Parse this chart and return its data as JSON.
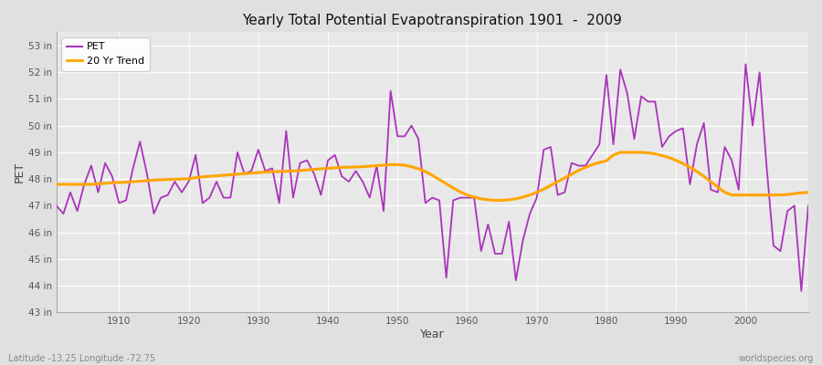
{
  "title": "Yearly Total Potential Evapotranspiration 1901  -  2009",
  "xlabel": "Year",
  "ylabel": "PET",
  "caption_left": "Latitude -13.25 Longitude -72.75",
  "caption_right": "worldspecies.org",
  "pet_color": "#AA33BB",
  "trend_color": "#FFA500",
  "bg_color": "#E0E0E0",
  "plot_bg_color": "#E8E8E8",
  "ylim_min": 43.0,
  "ylim_max": 53.5,
  "ytick_values": [
    43,
    44,
    45,
    46,
    47,
    48,
    49,
    50,
    51,
    52,
    53
  ],
  "ytick_labels": [
    "43 in",
    "44 in",
    "45 in",
    "46 in",
    "47 in",
    "48 in",
    "49 in",
    "50 in",
    "51 in",
    "52 in",
    "53 in"
  ],
  "xtick_values": [
    1910,
    1920,
    1930,
    1940,
    1950,
    1960,
    1970,
    1980,
    1990,
    2000
  ],
  "years": [
    1901,
    1902,
    1903,
    1904,
    1905,
    1906,
    1907,
    1908,
    1909,
    1910,
    1911,
    1912,
    1913,
    1914,
    1915,
    1916,
    1917,
    1918,
    1919,
    1920,
    1921,
    1922,
    1923,
    1924,
    1925,
    1926,
    1927,
    1928,
    1929,
    1930,
    1931,
    1932,
    1933,
    1934,
    1935,
    1936,
    1937,
    1938,
    1939,
    1940,
    1941,
    1942,
    1943,
    1944,
    1945,
    1946,
    1947,
    1948,
    1949,
    1950,
    1951,
    1952,
    1953,
    1954,
    1955,
    1956,
    1957,
    1958,
    1959,
    1960,
    1961,
    1962,
    1963,
    1964,
    1965,
    1966,
    1967,
    1968,
    1969,
    1970,
    1971,
    1972,
    1973,
    1974,
    1975,
    1976,
    1977,
    1978,
    1979,
    1980,
    1981,
    1982,
    1983,
    1984,
    1985,
    1986,
    1987,
    1988,
    1989,
    1990,
    1991,
    1992,
    1993,
    1994,
    1995,
    1996,
    1997,
    1998,
    1999,
    2000,
    2001,
    2002,
    2003,
    2004,
    2005,
    2006,
    2007,
    2008,
    2009
  ],
  "pet_values": [
    47.0,
    46.7,
    47.5,
    46.8,
    47.8,
    48.5,
    47.5,
    48.6,
    48.1,
    47.1,
    47.2,
    48.4,
    49.4,
    48.2,
    46.7,
    47.3,
    47.4,
    47.9,
    47.5,
    47.9,
    48.9,
    47.1,
    47.3,
    47.9,
    47.3,
    47.3,
    49.0,
    48.2,
    48.3,
    49.1,
    48.3,
    48.4,
    47.1,
    49.8,
    47.3,
    48.6,
    48.7,
    48.2,
    47.4,
    48.7,
    48.9,
    48.1,
    47.9,
    48.3,
    47.9,
    47.3,
    48.5,
    46.8,
    51.3,
    49.6,
    49.6,
    50.0,
    49.5,
    47.1,
    47.3,
    47.2,
    44.3,
    47.2,
    47.3,
    47.3,
    47.3,
    45.3,
    46.3,
    45.2,
    45.2,
    46.4,
    44.2,
    45.7,
    46.7,
    47.3,
    49.1,
    49.2,
    47.4,
    47.5,
    48.6,
    48.5,
    48.5,
    48.9,
    49.3,
    51.9,
    49.3,
    52.1,
    51.2,
    49.5,
    51.1,
    50.9,
    50.9,
    49.2,
    49.6,
    49.8,
    49.9,
    47.8,
    49.3,
    50.1,
    47.6,
    47.5,
    49.2,
    48.7,
    47.6,
    52.3,
    50.0,
    52.0,
    48.5,
    45.5,
    45.3,
    46.8,
    47.0,
    43.8,
    47.0
  ],
  "trend_years": [
    1901,
    1902,
    1903,
    1904,
    1905,
    1906,
    1907,
    1908,
    1909,
    1910,
    1911,
    1912,
    1913,
    1914,
    1915,
    1916,
    1917,
    1918,
    1919,
    1920,
    1921,
    1922,
    1923,
    1924,
    1925,
    1926,
    1927,
    1928,
    1929,
    1930,
    1931,
    1932,
    1933,
    1934,
    1935,
    1936,
    1937,
    1938,
    1939,
    1940,
    1941,
    1942,
    1943,
    1944,
    1945,
    1946,
    1947,
    1948,
    1949,
    1950,
    1951,
    1952,
    1953,
    1954,
    1955,
    1956,
    1957,
    1958,
    1959,
    1960,
    1961,
    1962,
    1963,
    1964,
    1965,
    1966,
    1967,
    1968,
    1969,
    1970,
    1971,
    1972,
    1973,
    1974,
    1975,
    1976,
    1977,
    1978,
    1979,
    1980,
    1981,
    1982,
    1983,
    1984,
    1985,
    1986,
    1987,
    1988,
    1989,
    1990,
    1991,
    1992,
    1993,
    1994,
    1995,
    1996,
    1997,
    1998,
    1999,
    2000,
    2001,
    2002,
    2003,
    2004,
    2005,
    2006,
    2007,
    2008,
    2009
  ],
  "trend_values": [
    47.8,
    47.8,
    47.8,
    47.8,
    47.8,
    47.8,
    47.82,
    47.84,
    47.86,
    47.87,
    47.88,
    47.9,
    47.92,
    47.94,
    47.96,
    47.97,
    47.98,
    47.99,
    48.0,
    48.01,
    48.05,
    48.08,
    48.1,
    48.12,
    48.14,
    48.16,
    48.18,
    48.2,
    48.22,
    48.24,
    48.26,
    48.28,
    48.28,
    48.29,
    48.3,
    48.32,
    48.34,
    48.36,
    48.38,
    48.4,
    48.42,
    48.44,
    48.44,
    48.45,
    48.46,
    48.48,
    48.5,
    48.52,
    48.54,
    48.54,
    48.52,
    48.46,
    48.38,
    48.28,
    48.14,
    47.98,
    47.82,
    47.66,
    47.52,
    47.4,
    47.32,
    47.26,
    47.22,
    47.2,
    47.2,
    47.22,
    47.26,
    47.32,
    47.4,
    47.5,
    47.62,
    47.76,
    47.9,
    48.04,
    48.18,
    48.32,
    48.44,
    48.54,
    48.62,
    48.68,
    48.9,
    49.0,
    49.0,
    49.0,
    49.0,
    48.98,
    48.94,
    48.88,
    48.8,
    48.7,
    48.58,
    48.44,
    48.28,
    48.1,
    47.9,
    47.7,
    47.5,
    47.4,
    47.4,
    47.4,
    47.4,
    47.4,
    47.4,
    47.4,
    47.4,
    47.42,
    47.45,
    47.48,
    47.5
  ]
}
